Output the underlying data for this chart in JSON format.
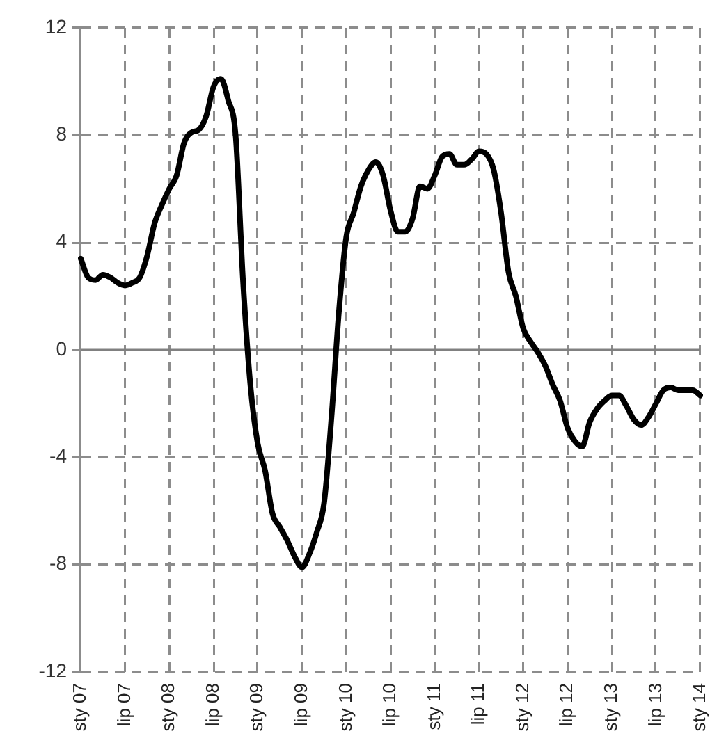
{
  "chart_data": {
    "type": "line",
    "categories": [
      "sty 07",
      null,
      null,
      null,
      null,
      null,
      "lip 07",
      null,
      null,
      null,
      null,
      null,
      "sty 08",
      null,
      null,
      null,
      null,
      null,
      "lip 08",
      null,
      null,
      null,
      null,
      null,
      "sty 09",
      null,
      null,
      null,
      null,
      null,
      "lip 09",
      null,
      null,
      null,
      null,
      null,
      "sty 10",
      null,
      null,
      null,
      null,
      null,
      "lip 10",
      null,
      null,
      null,
      null,
      null,
      "sty 11",
      null,
      null,
      null,
      null,
      null,
      "lip 11",
      null,
      null,
      null,
      null,
      null,
      "sty 12",
      null,
      null,
      null,
      null,
      null,
      "lip 12",
      null,
      null,
      null,
      null,
      null,
      "sty 13",
      null,
      null,
      null,
      null,
      null,
      "lip 13",
      null,
      null,
      null,
      null,
      null,
      "sty 14"
    ],
    "series": [
      {
        "color": "#000000",
        "values": [
          3.4,
          2.7,
          2.6,
          2.8,
          2.7,
          2.5,
          2.4,
          2.5,
          2.7,
          3.5,
          4.7,
          5.4,
          6.0,
          6.5,
          7.7,
          8.1,
          8.2,
          8.7,
          9.8,
          10.1,
          9.3,
          8.0,
          2.6,
          -1.3,
          -3.5,
          -4.5,
          -6.1,
          -6.6,
          -7.1,
          -7.7,
          -8.1,
          -7.6,
          -6.8,
          -5.7,
          -2.5,
          1.4,
          4.2,
          5.1,
          6.1,
          6.7,
          7.0,
          6.5,
          5.2,
          4.4,
          4.4,
          4.9,
          6.1,
          6.0,
          6.5,
          7.2,
          7.3,
          6.9,
          6.9,
          7.1,
          7.4,
          7.3,
          6.7,
          5.1,
          2.9,
          2.0,
          0.8,
          0.3,
          -0.1,
          -0.6,
          -1.3,
          -1.9,
          -2.9,
          -3.4,
          -3.6,
          -2.7,
          -2.2,
          -1.9,
          -1.7,
          -1.7,
          -2.1,
          -2.6,
          -2.8,
          -2.5,
          -2.0,
          -1.5,
          -1.4,
          -1.5,
          -1.5,
          -1.5,
          -1.7
        ]
      }
    ],
    "ylim": [
      -12,
      12
    ],
    "yticks": [
      -12,
      -8,
      -4,
      0,
      4,
      8,
      12
    ],
    "grid": true,
    "marker": "none",
    "line_style": "solid",
    "ref_lines": [
      {
        "axis": "y",
        "value": 0,
        "color": "#808080",
        "line_style": "solid"
      }
    ]
  }
}
